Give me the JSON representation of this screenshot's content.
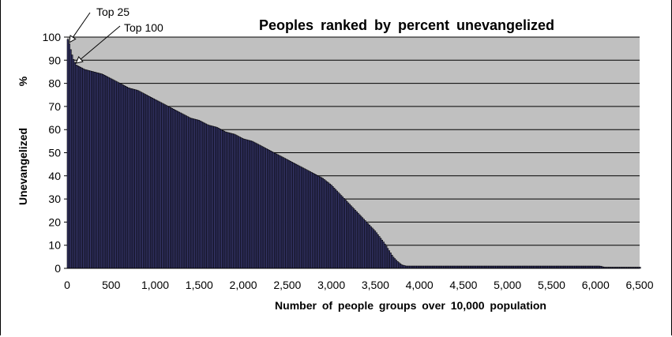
{
  "chart_data": {
    "type": "bar",
    "title": "Peoples ranked by percent unevangelized",
    "xlabel": "Number of people groups over 10,000 population",
    "ylabel": "Unevangelized %",
    "ylabel_parts": [
      "Unevangelized",
      "%"
    ],
    "xlim": [
      0,
      6500
    ],
    "ylim": [
      0,
      100
    ],
    "x_ticks": [
      "0",
      "500",
      "1,000",
      "1,500",
      "2,000",
      "2,500",
      "3,000",
      "3,500",
      "4,000",
      "4,500",
      "5,000",
      "5,500",
      "6,000",
      "6,500"
    ],
    "y_ticks": [
      "0",
      "10",
      "20",
      "30",
      "40",
      "50",
      "60",
      "70",
      "80",
      "90",
      "100"
    ],
    "grid": true,
    "series": [
      {
        "x": [
          0,
          25,
          50,
          75,
          100,
          150,
          200,
          300,
          400,
          500,
          600,
          700,
          800,
          900,
          1000,
          1100,
          1200,
          1300,
          1400,
          1500,
          1600,
          1700,
          1800,
          1900,
          2000,
          2100,
          2200,
          2300,
          2400,
          2500,
          2600,
          2700,
          2800,
          2900,
          3000,
          3100,
          3200,
          3300,
          3400,
          3500,
          3600,
          3650,
          3700,
          3750,
          3800,
          3850,
          4000,
          4500,
          5000,
          5500,
          6000,
          6050,
          6100,
          6500
        ],
        "y": [
          100,
          97,
          93,
          90,
          88,
          87,
          86,
          85,
          84,
          82,
          80,
          78,
          77,
          75,
          73,
          71,
          69,
          67,
          65,
          64,
          62,
          61,
          59,
          58,
          56,
          55,
          53,
          51,
          49,
          47,
          45,
          43,
          41,
          39,
          36,
          32,
          28,
          24,
          20,
          16,
          11,
          8,
          5,
          3,
          1.5,
          1,
          1,
          1,
          1,
          1,
          1,
          1,
          0.5,
          0.5
        ]
      }
    ],
    "annotations": [
      {
        "text": "Top 25",
        "rank": 25
      },
      {
        "text": "Top 100",
        "rank": 100
      }
    ],
    "colors": {
      "plot_background": "#c0c0c0",
      "bar_fill": "#3a3a72",
      "bar_edge": "#000000",
      "gridline": "#000000"
    }
  }
}
